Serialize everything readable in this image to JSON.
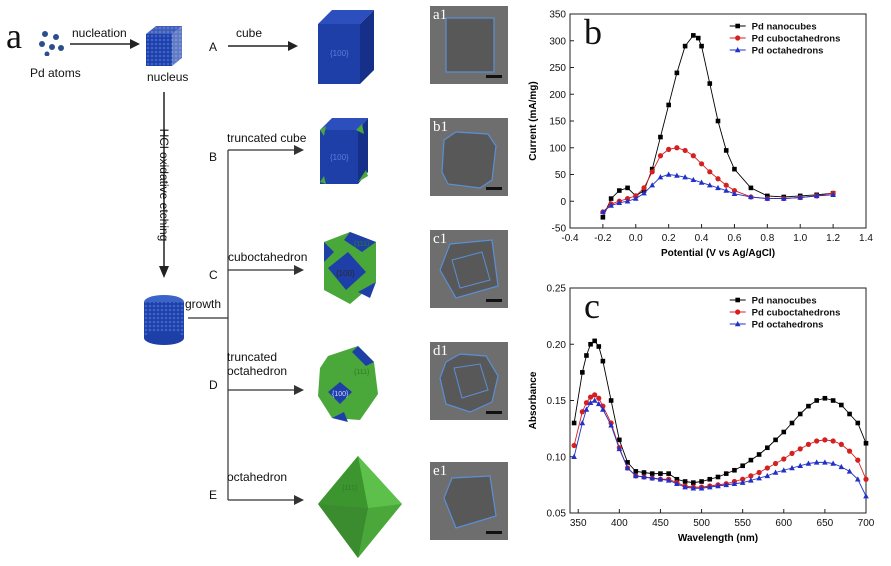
{
  "panel_a": {
    "letter": "a",
    "pd_atoms": "Pd atoms",
    "nucleation": "nucleation",
    "nucleus": "nucleus",
    "hcl": "HCl oxidative etching",
    "growth": "growth",
    "paths": [
      {
        "key": "A",
        "label": "cube",
        "face": "{100}",
        "tem": "a1"
      },
      {
        "key": "B",
        "label": "truncated cube",
        "face": "{100}",
        "tem": "b1"
      },
      {
        "key": "C",
        "label": "cuboctahedron",
        "face": "{100}",
        "face2": "{111}",
        "tem": "c1"
      },
      {
        "key": "D",
        "label": "truncated octahedron",
        "face": "{100}",
        "face2": "{111}",
        "tem": "d1"
      },
      {
        "key": "E",
        "label": "octahedron",
        "face": "{111}",
        "tem": "e1"
      }
    ],
    "colors": {
      "blue": "#1f3fa8",
      "green": "#4aa83a",
      "atom": "#2a4f8a",
      "tem_outline": "#5b8fd6"
    }
  },
  "chart_data": [
    {
      "panel": "b",
      "type": "line",
      "xlabel": "Potential (V vs Ag/AgCl)",
      "ylabel": "Current (mA/mg)",
      "xlim": [
        -0.4,
        1.4
      ],
      "ylim": [
        -50,
        350
      ],
      "xticks": [
        "-0.4",
        "-0.2",
        "0.0",
        "0.2",
        "0.4",
        "0.6",
        "0.8",
        "1.0",
        "1.2",
        "1.4"
      ],
      "yticks": [
        "-50",
        "0",
        "50",
        "100",
        "150",
        "200",
        "250",
        "300",
        "350"
      ],
      "legend_position": "top-right",
      "series": [
        {
          "name": "Pd nanocubes",
          "color": "#000000",
          "marker": "square",
          "x": [
            -0.2,
            -0.15,
            -0.1,
            -0.05,
            0.0,
            0.05,
            0.1,
            0.15,
            0.2,
            0.25,
            0.3,
            0.35,
            0.38,
            0.4,
            0.45,
            0.5,
            0.55,
            0.6,
            0.7,
            0.8,
            0.9,
            1.0,
            1.1,
            1.2
          ],
          "y": [
            -30,
            5,
            20,
            25,
            10,
            20,
            60,
            120,
            180,
            240,
            290,
            310,
            305,
            290,
            220,
            150,
            95,
            60,
            25,
            10,
            8,
            10,
            12,
            15
          ]
        },
        {
          "name": "Pd cuboctahedrons",
          "color": "#d42020",
          "marker": "circle",
          "x": [
            -0.2,
            -0.15,
            -0.1,
            -0.05,
            0.0,
            0.05,
            0.1,
            0.15,
            0.2,
            0.25,
            0.3,
            0.35,
            0.4,
            0.45,
            0.5,
            0.55,
            0.6,
            0.7,
            0.8,
            0.9,
            1.0,
            1.1,
            1.2
          ],
          "y": [
            -20,
            -5,
            0,
            5,
            10,
            25,
            55,
            85,
            97,
            100,
            95,
            85,
            70,
            55,
            42,
            30,
            20,
            8,
            5,
            5,
            7,
            10,
            15
          ]
        },
        {
          "name": "Pd octahedrons",
          "color": "#2030c8",
          "marker": "triangle",
          "x": [
            -0.2,
            -0.15,
            -0.1,
            -0.05,
            0.0,
            0.05,
            0.1,
            0.15,
            0.2,
            0.25,
            0.3,
            0.35,
            0.4,
            0.45,
            0.5,
            0.55,
            0.6,
            0.7,
            0.8,
            0.9,
            1.0,
            1.1,
            1.2
          ],
          "y": [
            -20,
            -8,
            -3,
            0,
            5,
            15,
            30,
            45,
            50,
            48,
            45,
            40,
            35,
            30,
            25,
            20,
            14,
            8,
            5,
            5,
            7,
            10,
            12
          ]
        }
      ]
    },
    {
      "panel": "c",
      "type": "line",
      "xlabel": "Wavelength (nm)",
      "ylabel": "Absorbance",
      "xlim": [
        340,
        700
      ],
      "ylim": [
        0.05,
        0.25
      ],
      "xticks": [
        "350",
        "400",
        "450",
        "500",
        "550",
        "600",
        "650",
        "700"
      ],
      "yticks": [
        "0.05",
        "0.10",
        "0.15",
        "0.20",
        "0.25"
      ],
      "legend_position": "top-right",
      "series": [
        {
          "name": "Pd nanocubes",
          "color": "#000000",
          "marker": "square",
          "x": [
            345,
            355,
            360,
            365,
            370,
            375,
            380,
            390,
            400,
            410,
            420,
            430,
            440,
            450,
            460,
            470,
            480,
            490,
            500,
            510,
            520,
            530,
            540,
            550,
            560,
            570,
            580,
            590,
            600,
            610,
            620,
            630,
            640,
            650,
            660,
            670,
            680,
            690,
            700
          ],
          "y": [
            0.13,
            0.175,
            0.19,
            0.2,
            0.203,
            0.198,
            0.185,
            0.15,
            0.115,
            0.095,
            0.087,
            0.086,
            0.085,
            0.085,
            0.085,
            0.08,
            0.078,
            0.077,
            0.078,
            0.08,
            0.082,
            0.085,
            0.088,
            0.092,
            0.097,
            0.102,
            0.108,
            0.115,
            0.122,
            0.13,
            0.138,
            0.145,
            0.15,
            0.152,
            0.15,
            0.146,
            0.138,
            0.13,
            0.112
          ]
        },
        {
          "name": "Pd cuboctahedrons",
          "color": "#d42020",
          "marker": "circle",
          "x": [
            345,
            355,
            360,
            365,
            370,
            375,
            380,
            390,
            400,
            410,
            420,
            430,
            440,
            450,
            460,
            470,
            480,
            490,
            500,
            510,
            520,
            530,
            540,
            550,
            560,
            570,
            580,
            590,
            600,
            610,
            620,
            630,
            640,
            650,
            660,
            670,
            680,
            690,
            700
          ],
          "y": [
            0.11,
            0.14,
            0.148,
            0.153,
            0.155,
            0.152,
            0.145,
            0.13,
            0.108,
            0.09,
            0.083,
            0.082,
            0.081,
            0.08,
            0.08,
            0.077,
            0.074,
            0.073,
            0.073,
            0.074,
            0.075,
            0.076,
            0.078,
            0.08,
            0.083,
            0.086,
            0.09,
            0.094,
            0.098,
            0.103,
            0.107,
            0.111,
            0.114,
            0.115,
            0.114,
            0.111,
            0.105,
            0.097,
            0.08
          ]
        },
        {
          "name": "Pd octahedrons",
          "color": "#2030c8",
          "marker": "triangle",
          "x": [
            345,
            355,
            360,
            365,
            370,
            375,
            380,
            390,
            400,
            410,
            420,
            430,
            440,
            450,
            460,
            470,
            480,
            490,
            500,
            510,
            520,
            530,
            540,
            550,
            560,
            570,
            580,
            590,
            600,
            610,
            620,
            630,
            640,
            650,
            660,
            670,
            680,
            690,
            700
          ],
          "y": [
            0.1,
            0.13,
            0.142,
            0.148,
            0.15,
            0.147,
            0.142,
            0.128,
            0.107,
            0.09,
            0.083,
            0.082,
            0.081,
            0.08,
            0.079,
            0.076,
            0.073,
            0.072,
            0.072,
            0.073,
            0.074,
            0.075,
            0.076,
            0.077,
            0.079,
            0.081,
            0.083,
            0.086,
            0.088,
            0.09,
            0.092,
            0.094,
            0.095,
            0.095,
            0.094,
            0.091,
            0.087,
            0.08,
            0.065
          ]
        }
      ]
    }
  ],
  "panel_b_letter": "b",
  "panel_c_letter": "c"
}
